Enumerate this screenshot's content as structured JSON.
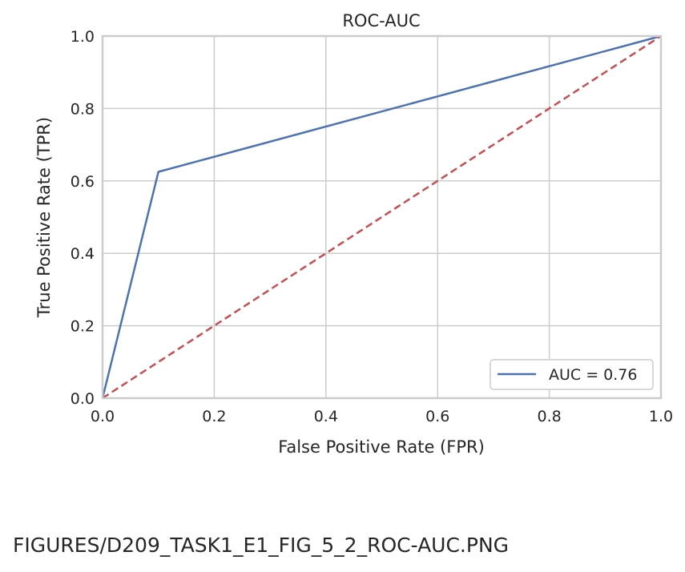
{
  "chart_data": {
    "type": "line",
    "title": "ROC-AUC",
    "xlabel": "False Positive Rate (FPR)",
    "ylabel": "True Positive Rate (TPR)",
    "xlim": [
      0,
      1
    ],
    "ylim": [
      0,
      1
    ],
    "x_ticks": [
      "0.0",
      "0.2",
      "0.4",
      "0.6",
      "0.8",
      "1.0"
    ],
    "y_ticks": [
      "0.0",
      "0.2",
      "0.4",
      "0.6",
      "0.8",
      "1.0"
    ],
    "grid": true,
    "legend_position": "lower-right",
    "series": [
      {
        "name": "AUC = 0.76",
        "color": "#4c72b0",
        "style": "solid",
        "x": [
          0.0,
          0.1,
          1.0
        ],
        "y": [
          0.0,
          0.625,
          1.0
        ]
      },
      {
        "color": "#c44e52",
        "style": "dashed",
        "x": [
          0.0,
          1.0
        ],
        "y": [
          0.0,
          1.0
        ]
      }
    ]
  },
  "caption": "FIGURES/D209_TASK1_E1_FIG_5_2_ROC-AUC.PNG"
}
